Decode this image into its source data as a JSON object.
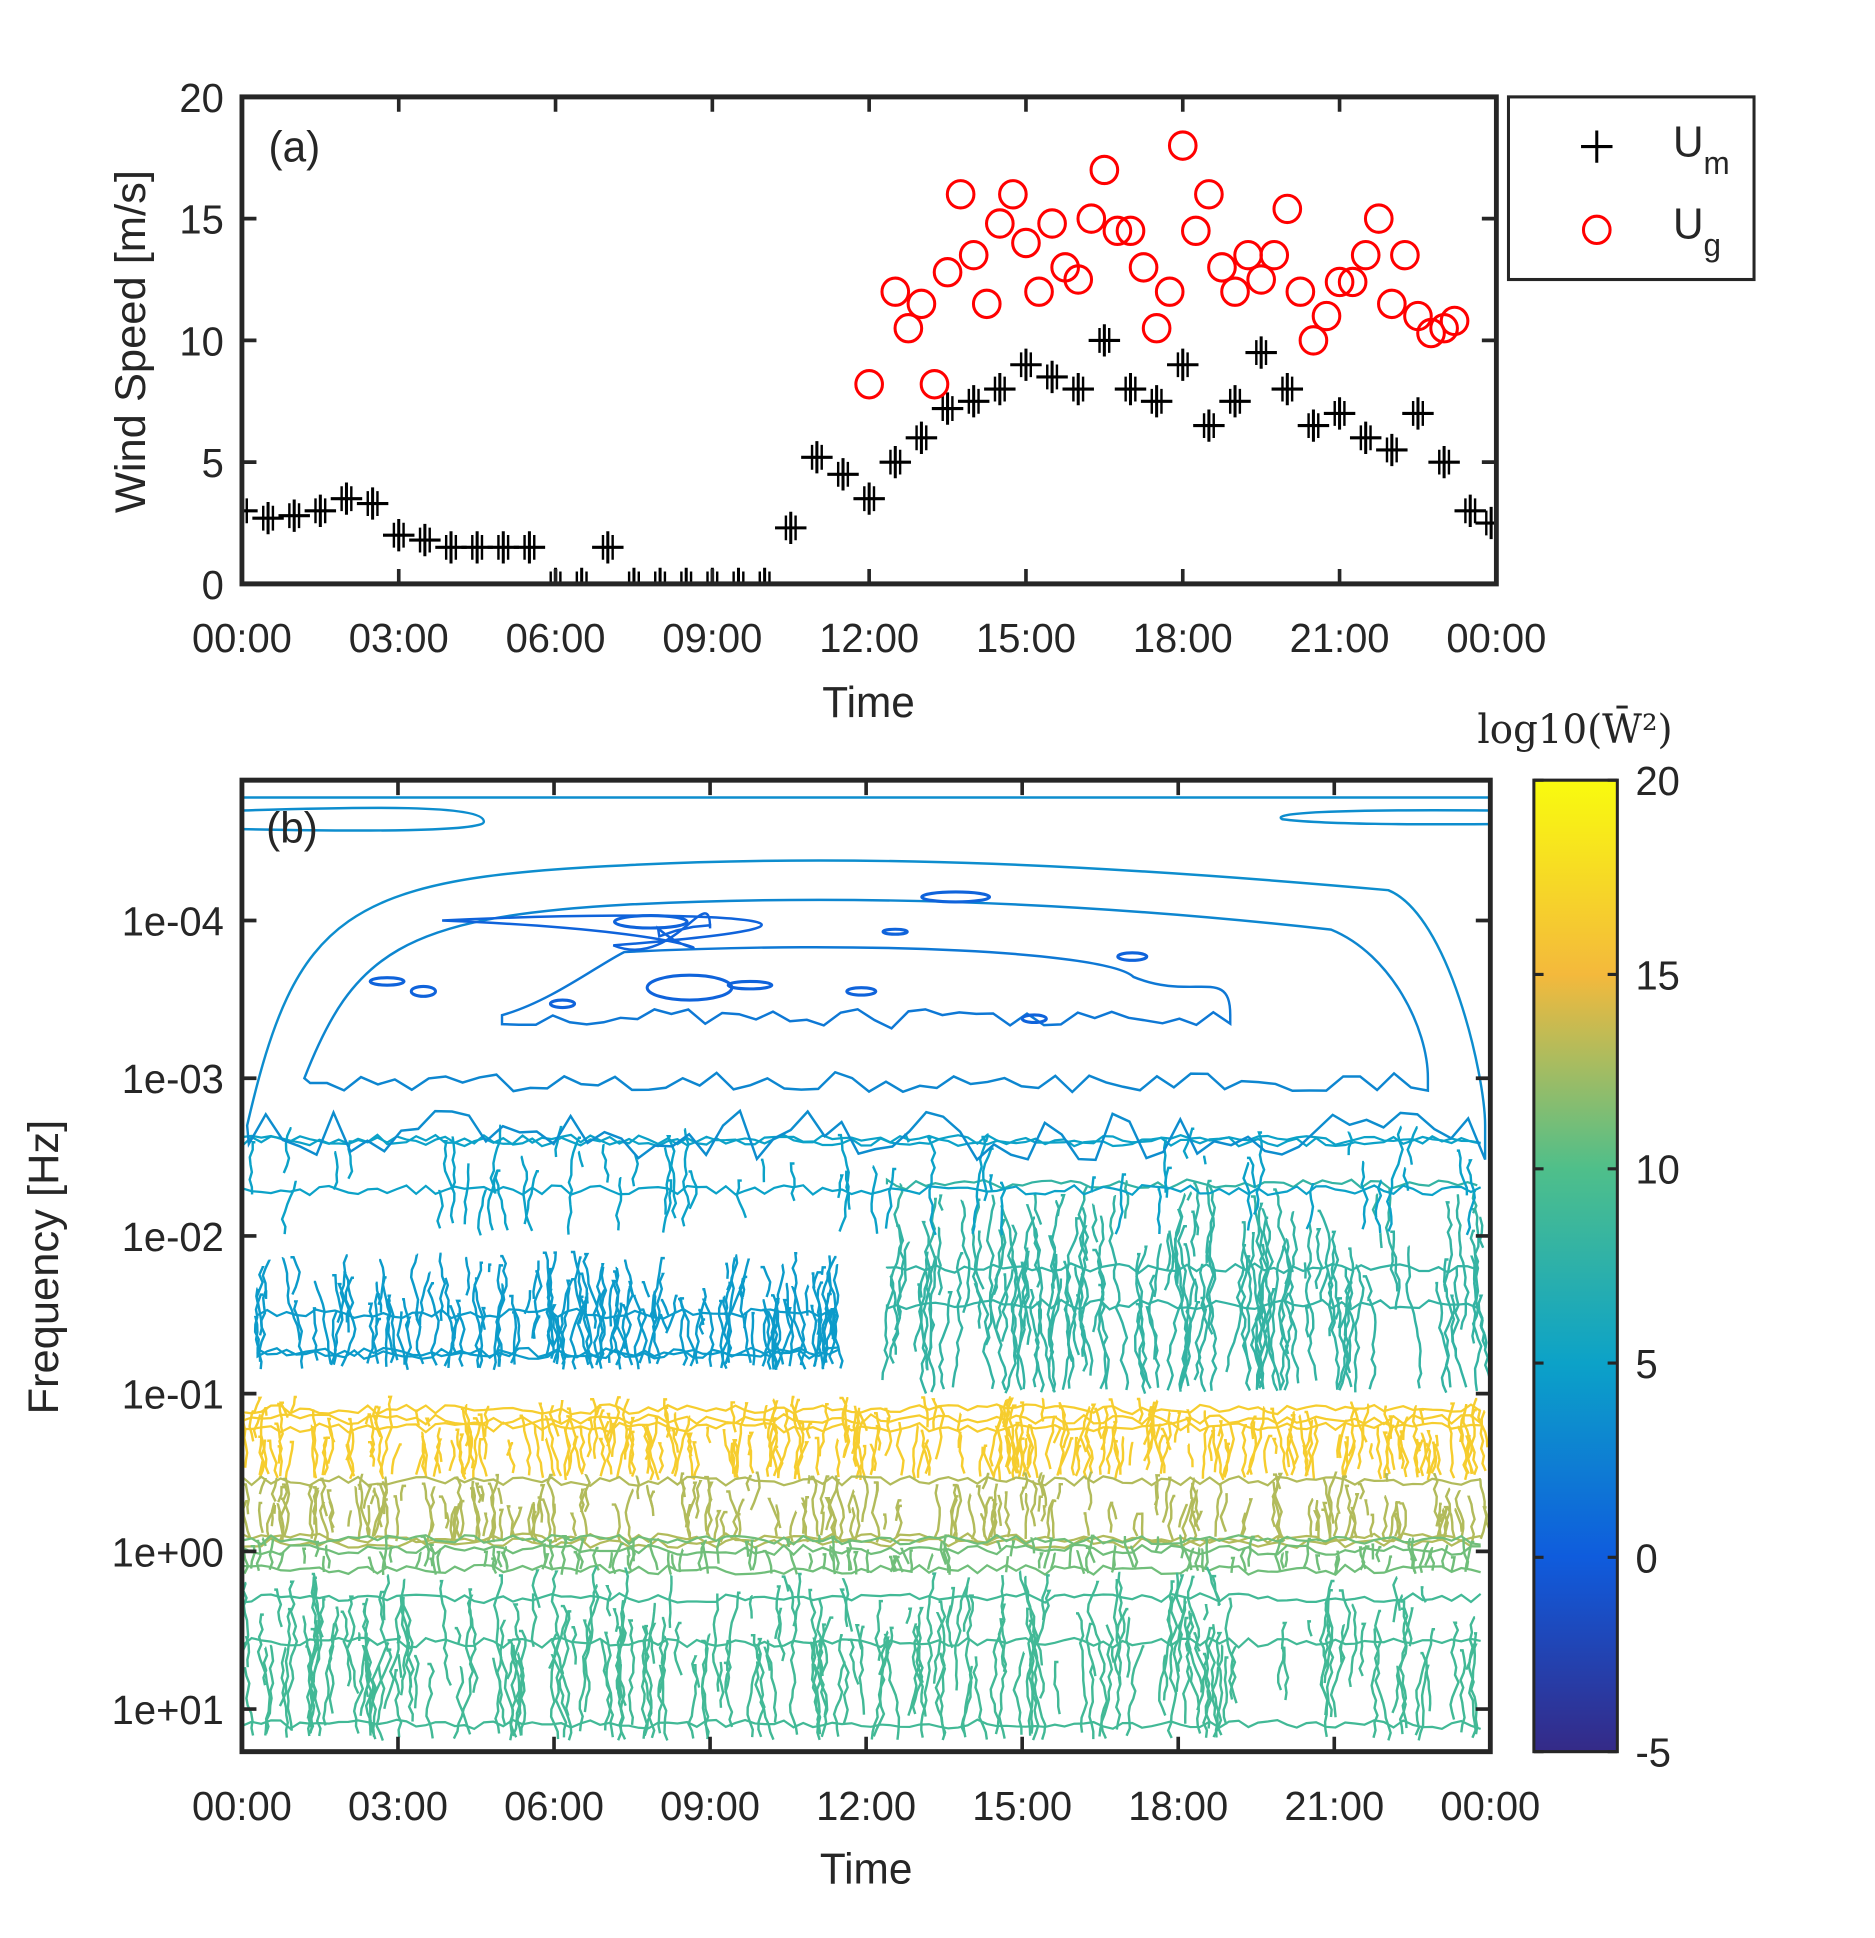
{
  "chart_data": [
    {
      "type": "scatter",
      "panel_label": "(a)",
      "xlabel": "Time",
      "ylabel": "Wind Speed [m/s]",
      "xlim_hours": [
        0,
        24
      ],
      "ylim": [
        0,
        20
      ],
      "xticks": [
        "00:00",
        "03:00",
        "06:00",
        "09:00",
        "12:00",
        "15:00",
        "18:00",
        "21:00",
        "00:00"
      ],
      "yticks": [
        "0",
        "5",
        "10",
        "15",
        "20"
      ],
      "legend": {
        "placement": "outside-top-right",
        "entries": [
          {
            "name": "U",
            "sub": "m",
            "marker": "plus",
            "color": "#000000"
          },
          {
            "name": "U",
            "sub": "g",
            "marker": "circle",
            "color": "#ff0000"
          }
        ]
      },
      "series": [
        {
          "name": "Um",
          "x_hours": [
            0,
            0.5,
            1,
            1.5,
            2,
            2.5,
            3,
            3.5,
            4,
            4.5,
            5,
            5.5,
            6,
            6.5,
            7,
            7.5,
            8,
            8.5,
            9,
            9.5,
            10,
            10.5,
            11,
            11.5,
            12,
            12.5,
            13,
            13.5,
            14,
            14.5,
            15,
            15.5,
            16,
            16.5,
            17,
            17.5,
            18,
            18.5,
            19,
            19.5,
            20,
            20.5,
            21,
            21.5,
            22,
            22.5,
            23,
            23.5,
            23.9
          ],
          "y": [
            3,
            2.7,
            2.8,
            3,
            3.5,
            3.3,
            2,
            1.8,
            1.5,
            1.5,
            1.5,
            1.5,
            0,
            0,
            1.5,
            0,
            0,
            0,
            0,
            0,
            0,
            2.3,
            5.2,
            4.5,
            3.5,
            5,
            6,
            7.2,
            7.5,
            8,
            9,
            8.5,
            8,
            10,
            8,
            7.5,
            9,
            6.5,
            7.5,
            9.5,
            8,
            6.5,
            7,
            6,
            5.5,
            7,
            5,
            3,
            2.5
          ]
        },
        {
          "name": "Ug",
          "x_hours": [
            12,
            12.5,
            12.75,
            13,
            13.25,
            13.5,
            13.75,
            14,
            14.25,
            14.5,
            14.75,
            15,
            15.25,
            15.5,
            15.75,
            16,
            16.25,
            16.5,
            16.75,
            17,
            17.25,
            17.5,
            17.75,
            18,
            18.25,
            18.5,
            18.75,
            19,
            19.25,
            19.5,
            19.75,
            20,
            20.25,
            20.5,
            20.75,
            21,
            21.25,
            21.5,
            21.75,
            22,
            22.25,
            22.5,
            22.75,
            23,
            23.2
          ],
          "y": [
            8.2,
            12,
            10.5,
            11.5,
            8.2,
            12.8,
            16,
            13.5,
            11.5,
            14.8,
            16,
            14,
            12,
            14.8,
            13,
            12.5,
            15,
            17,
            14.5,
            14.5,
            13,
            10.5,
            12,
            18,
            14.5,
            16,
            13,
            12,
            13.5,
            12.5,
            13.5,
            15.4,
            12,
            10,
            11,
            12.4,
            12.4,
            13.5,
            15,
            11.5,
            13.5,
            11,
            10.3,
            10.5,
            10.8
          ]
        }
      ]
    },
    {
      "type": "contour",
      "panel_label": "(b)",
      "xlabel": "Time",
      "ylabel": "Frequency [Hz]",
      "xticks": [
        "00:00",
        "03:00",
        "06:00",
        "09:00",
        "12:00",
        "15:00",
        "18:00",
        "21:00",
        "00:00"
      ],
      "yticks": [
        "1e-04",
        "1e-03",
        "1e-02",
        "1e-01",
        "1e+00",
        "1e+01"
      ],
      "ylim_log10": [
        -4.89,
        1.27
      ],
      "colorbar": {
        "title": "log10(W̄²)",
        "ticks": [
          "20",
          "15",
          "10",
          "5",
          "0",
          "-5"
        ],
        "range": [
          -5,
          20
        ]
      },
      "bands": [
        {
          "t": [
            0.3,
            11.5
          ],
          "log10f": [
            -1.9,
            -1.15
          ],
          "level": 4.5,
          "density": 140
        },
        {
          "t": [
            12.4,
            23.8
          ],
          "log10f": [
            -2.35,
            -1.0
          ],
          "level": 8,
          "density": 130
        },
        {
          "t": [
            0,
            24
          ],
          "log10f": [
            -0.98,
            -0.45
          ],
          "level": 16.5,
          "density": 260
        },
        {
          "t": [
            0,
            24
          ],
          "log10f": [
            -0.5,
            -0.05
          ],
          "level": 13,
          "density": 200
        },
        {
          "t": [
            0,
            24
          ],
          "log10f": [
            -0.1,
            0.15
          ],
          "level": 11,
          "density": 120
        },
        {
          "t": [
            0,
            24
          ],
          "log10f": [
            0.1,
            1.2
          ],
          "level": 9,
          "density": 220
        },
        {
          "t": [
            0,
            24
          ],
          "log10f": [
            -2.7,
            -2.0
          ],
          "level": 5,
          "density": 60
        }
      ],
      "upper_contours": [
        {
          "level": 3.5,
          "t": [
            0.1,
            23.9
          ],
          "log10f": [
            -4.8,
            -4.7
          ]
        },
        {
          "level": 3.5,
          "t": [
            0.1,
            23.9
          ],
          "log10f": [
            -4.35,
            -2.7
          ]
        },
        {
          "level": 3,
          "t": [
            1.2,
            22.8
          ],
          "log10f": [
            -4.1,
            -3.0
          ]
        },
        {
          "level": 2,
          "t": [
            5,
            19
          ],
          "log10f": [
            -3.8,
            -3.4
          ]
        },
        {
          "level": 0.5,
          "t": [
            8,
            9
          ],
          "log10f": [
            -4.0,
            -3.95
          ]
        }
      ]
    }
  ]
}
